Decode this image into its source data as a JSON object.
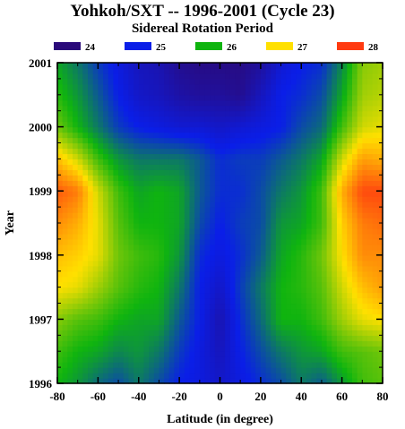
{
  "chart_data": {
    "type": "heatmap",
    "title": "Yohkoh/SXT -- 1996-2001 (Cycle 23)",
    "subtitle": "Sidereal Rotation Period",
    "xlabel": "Latitude (in degree)",
    "ylabel": "Year",
    "xlim": [
      -80,
      80
    ],
    "ylim": [
      1996,
      2001
    ],
    "x_ticks": [
      "-80",
      "-60",
      "-40",
      "-20",
      "0",
      "20",
      "40",
      "60",
      "80"
    ],
    "y_ticks": [
      "1996",
      "1997",
      "1998",
      "1999",
      "2000",
      "2001"
    ],
    "legend": [
      {
        "label": "24",
        "value": 24,
        "color": "#2a0a7a"
      },
      {
        "label": "25",
        "value": 25,
        "color": "#0a1ee8"
      },
      {
        "label": "26",
        "value": 26,
        "color": "#0fb40f"
      },
      {
        "label": "27",
        "value": 27,
        "color": "#ffe000"
      },
      {
        "label": "28",
        "value": 28,
        "color": "#ff3a10"
      }
    ],
    "x": [
      -80,
      -70,
      -60,
      -50,
      -40,
      -30,
      -20,
      -10,
      0,
      10,
      20,
      30,
      40,
      50,
      60,
      70,
      80
    ],
    "y": [
      1996.0,
      1996.5,
      1997.0,
      1997.5,
      1998.0,
      1998.5,
      1999.0,
      1999.5,
      2000.0,
      2000.5,
      2001.0
    ],
    "z": [
      [
        26.0,
        25.8,
        25.5,
        25.3,
        25.6,
        25.3,
        25.0,
        24.9,
        24.7,
        24.9,
        25.1,
        25.3,
        25.6,
        25.4,
        25.8,
        26.2,
        26.3
      ],
      [
        26.2,
        26.0,
        25.9,
        25.7,
        25.8,
        25.6,
        25.2,
        24.9,
        24.6,
        25.0,
        25.3,
        25.6,
        25.8,
        25.9,
        26.2,
        26.3,
        26.4
      ],
      [
        26.5,
        26.3,
        26.2,
        26.0,
        25.9,
        25.9,
        25.4,
        25.0,
        24.5,
        25.1,
        25.5,
        26.0,
        26.0,
        26.2,
        26.6,
        26.9,
        27.0
      ],
      [
        27.0,
        26.9,
        26.6,
        26.3,
        26.1,
        26.0,
        25.6,
        25.0,
        24.7,
        25.2,
        25.6,
        26.0,
        26.1,
        26.3,
        26.8,
        27.2,
        27.4
      ],
      [
        27.2,
        27.1,
        26.9,
        26.4,
        26.2,
        26.1,
        25.8,
        25.1,
        24.9,
        25.1,
        25.4,
        25.9,
        26.1,
        26.4,
        27.0,
        27.5,
        27.5
      ],
      [
        27.5,
        27.3,
        26.9,
        26.3,
        26.0,
        26.0,
        25.9,
        25.3,
        25.0,
        25.2,
        25.3,
        25.8,
        25.9,
        26.2,
        27.1,
        27.6,
        27.7
      ],
      [
        27.8,
        27.6,
        26.8,
        26.2,
        25.9,
        26.0,
        25.9,
        25.4,
        25.1,
        25.1,
        25.3,
        25.6,
        25.8,
        26.2,
        27.3,
        27.9,
        27.9
      ],
      [
        27.2,
        26.8,
        26.2,
        25.8,
        25.6,
        25.6,
        25.6,
        25.4,
        25.1,
        25.2,
        25.2,
        25.4,
        25.6,
        25.9,
        26.8,
        27.4,
        27.3
      ],
      [
        26.4,
        26.0,
        25.6,
        25.2,
        25.0,
        24.9,
        24.8,
        24.8,
        24.7,
        24.8,
        24.9,
        25.0,
        25.3,
        25.5,
        26.2,
        26.8,
        26.9
      ],
      [
        26.1,
        25.8,
        25.4,
        25.0,
        24.7,
        24.6,
        24.4,
        24.3,
        24.3,
        24.2,
        24.6,
        25.0,
        25.1,
        25.3,
        25.9,
        26.6,
        26.7
      ],
      [
        25.9,
        25.6,
        25.2,
        24.9,
        24.6,
        24.5,
        24.2,
        24.1,
        24.1,
        24.1,
        24.3,
        24.8,
        25.0,
        25.1,
        25.7,
        26.5,
        26.6
      ]
    ],
    "colorbar_range": [
      24,
      28
    ],
    "grid": false
  }
}
